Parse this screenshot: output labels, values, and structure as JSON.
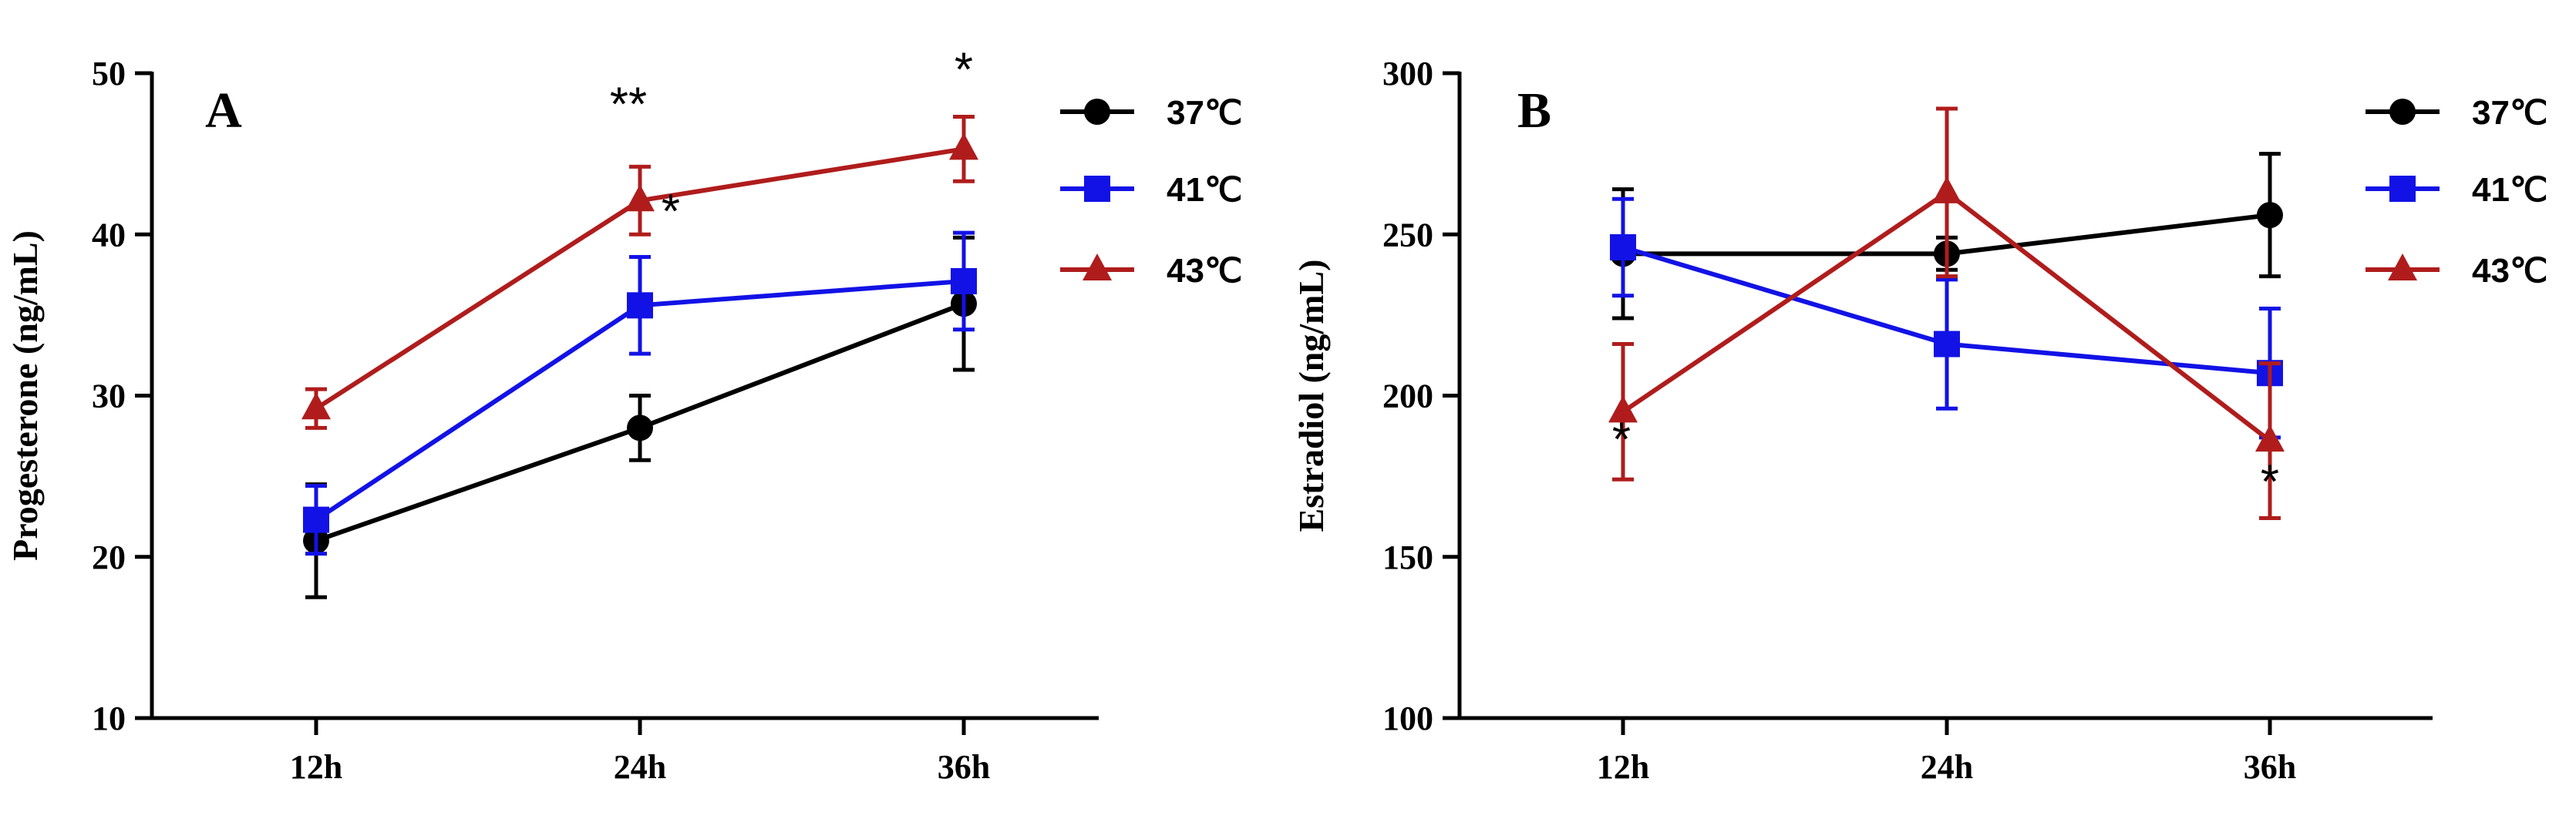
{
  "chart_data": [
    {
      "type": "line",
      "panel_label": "A",
      "ylabel": "Progesterone (ng/mL)",
      "xlabel": "",
      "categories": [
        "12h",
        "24h",
        "36h"
      ],
      "ylim": [
        10,
        50
      ],
      "yticks": [
        "10",
        "20",
        "30",
        "40",
        "50"
      ],
      "grid": false,
      "legend_position": "top-right",
      "series": [
        {
          "name": "37℃",
          "color": "#000000",
          "marker": "circle",
          "values": [
            21,
            28,
            35.7
          ],
          "errors": [
            3.5,
            2,
            4.1
          ]
        },
        {
          "name": "41℃",
          "color": "#1212e6",
          "marker": "square",
          "values": [
            22.3,
            35.6,
            37.1
          ],
          "errors": [
            2.1,
            3,
            3
          ]
        },
        {
          "name": "43℃",
          "color": "#b01c1c",
          "marker": "triangle",
          "values": [
            29.2,
            42.1,
            45.3
          ],
          "errors": [
            1.2,
            2.1,
            2
          ]
        }
      ],
      "significance": [
        {
          "text": "**",
          "category": "24h",
          "series": "43℃"
        },
        {
          "text": "*",
          "category": "24h",
          "series": "41℃"
        },
        {
          "text": "*",
          "category": "36h",
          "series": "43℃"
        }
      ]
    },
    {
      "type": "line",
      "panel_label": "B",
      "ylabel": "Estradiol (ng/mL)",
      "xlabel": "",
      "categories": [
        "12h",
        "24h",
        "36h"
      ],
      "ylim": [
        100,
        300
      ],
      "yticks": [
        "100",
        "150",
        "200",
        "250",
        "300"
      ],
      "grid": false,
      "legend_position": "top-right",
      "series": [
        {
          "name": "37℃",
          "color": "#000000",
          "marker": "circle",
          "values": [
            244,
            244,
            256
          ],
          "errors": [
            20,
            5,
            19
          ]
        },
        {
          "name": "41℃",
          "color": "#1212e6",
          "marker": "square",
          "values": [
            246,
            216,
            207
          ],
          "errors": [
            15,
            20,
            20
          ]
        },
        {
          "name": "43℃",
          "color": "#b01c1c",
          "marker": "triangle",
          "values": [
            195,
            263,
            186
          ],
          "errors": [
            21,
            26,
            24
          ]
        }
      ],
      "significance": [
        {
          "text": "*",
          "category": "12h",
          "series": "43℃"
        },
        {
          "text": "*",
          "category": "36h",
          "series": "43℃"
        }
      ]
    }
  ]
}
